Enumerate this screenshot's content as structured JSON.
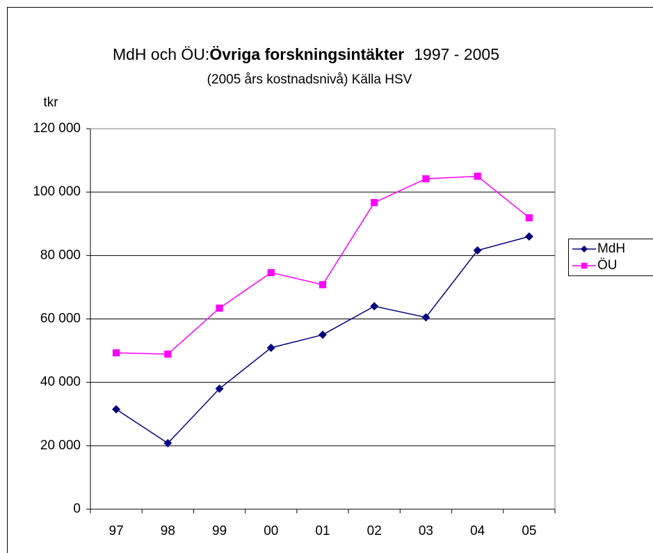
{
  "chart_data": {
    "type": "line",
    "title": [
      "MdH och ÖU:",
      "Övriga forskningsintäkter",
      "1997 - 2005"
    ],
    "subtitle": "(2005 års kostnadsnivå) Källa HSV",
    "y_label": "tkr",
    "categories": [
      "97",
      "98",
      "99",
      "00",
      "01",
      "02",
      "03",
      "04",
      "05"
    ],
    "series": [
      {
        "name": "MdH",
        "color": "#000080",
        "marker": "diamond",
        "values": [
          31500,
          20800,
          38000,
          50900,
          55000,
          64000,
          60500,
          81600,
          86000
        ]
      },
      {
        "name": "ÖU",
        "color": "#ff00ff",
        "marker": "square",
        "values": [
          49300,
          48900,
          63400,
          74600,
          70800,
          96700,
          104200,
          105000,
          91900
        ]
      }
    ],
    "ylim": [
      0,
      120000
    ],
    "yticks": [
      0,
      {
        "value": 20000,
        "label": "20 000"
      },
      {
        "value": 40000,
        "label": "40 000"
      },
      {
        "value": 60000,
        "label": "60 000"
      },
      {
        "value": 80000,
        "label": "80 000"
      },
      {
        "value": 100000,
        "label": "100 000"
      },
      {
        "value": 120000,
        "label": "120 000"
      }
    ],
    "grid": true,
    "legend": "right"
  }
}
